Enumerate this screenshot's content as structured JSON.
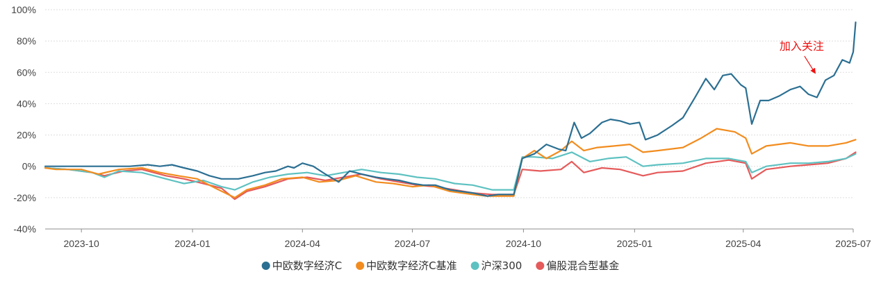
{
  "chart_data": {
    "type": "line",
    "title": "",
    "xlabel": "",
    "ylabel": "",
    "x_range": [
      "2023-09-01",
      "2025-07-01"
    ],
    "ylim": [
      -40,
      100
    ],
    "y_ticks": [
      -40,
      -20,
      0,
      20,
      40,
      60,
      80,
      100
    ],
    "y_tick_labels": [
      "-40%",
      "-20%",
      "0%",
      "20%",
      "40%",
      "60%",
      "80%",
      "100%"
    ],
    "x_ticks": [
      {
        "date": "2023-10-01",
        "label": "2023-10"
      },
      {
        "date": "2024-01-01",
        "label": "2024-01"
      },
      {
        "date": "2024-04-01",
        "label": "2024-04"
      },
      {
        "date": "2024-07-01",
        "label": "2024-07"
      },
      {
        "date": "2024-10-01",
        "label": "2024-10"
      },
      {
        "date": "2025-01-01",
        "label": "2025-01"
      },
      {
        "date": "2025-04-01",
        "label": "2025-04"
      },
      {
        "date": "2025-07-01",
        "label": "2025-07"
      }
    ],
    "grid": true,
    "legend_position": "bottom",
    "annotation": {
      "text": "加入关注",
      "x": "2025-06-01",
      "y": 58,
      "color": "#ee1111"
    },
    "series": [
      {
        "name": "中欧数字经济C",
        "color": "#2b6f92",
        "points": [
          [
            "2023-09-01",
            0
          ],
          [
            "2023-09-20",
            0
          ],
          [
            "2023-10-15",
            0
          ],
          [
            "2023-11-10",
            0
          ],
          [
            "2023-11-25",
            1
          ],
          [
            "2023-12-05",
            0
          ],
          [
            "2023-12-15",
            1
          ],
          [
            "2023-12-25",
            -1
          ],
          [
            "2024-01-05",
            -3
          ],
          [
            "2024-01-15",
            -6
          ],
          [
            "2024-01-25",
            -8
          ],
          [
            "2024-02-08",
            -8
          ],
          [
            "2024-02-20",
            -6
          ],
          [
            "2024-03-01",
            -4
          ],
          [
            "2024-03-10",
            -3
          ],
          [
            "2024-03-20",
            0
          ],
          [
            "2024-03-25",
            -1
          ],
          [
            "2024-04-01",
            2
          ],
          [
            "2024-04-10",
            0
          ],
          [
            "2024-04-20",
            -5
          ],
          [
            "2024-05-01",
            -10
          ],
          [
            "2024-05-10",
            -3
          ],
          [
            "2024-05-20",
            -5
          ],
          [
            "2024-06-01",
            -7
          ],
          [
            "2024-06-10",
            -8
          ],
          [
            "2024-06-20",
            -9
          ],
          [
            "2024-07-01",
            -11
          ],
          [
            "2024-07-10",
            -12
          ],
          [
            "2024-07-20",
            -12
          ],
          [
            "2024-08-01",
            -15
          ],
          [
            "2024-08-10",
            -16
          ],
          [
            "2024-08-20",
            -17
          ],
          [
            "2024-09-01",
            -19
          ],
          [
            "2024-09-10",
            -18
          ],
          [
            "2024-09-23",
            -18
          ],
          [
            "2024-09-30",
            5
          ],
          [
            "2024-10-10",
            8
          ],
          [
            "2024-10-20",
            14
          ],
          [
            "2024-10-30",
            11
          ],
          [
            "2024-11-05",
            10
          ],
          [
            "2024-11-12",
            28
          ],
          [
            "2024-11-18",
            18
          ],
          [
            "2024-11-25",
            21
          ],
          [
            "2024-12-05",
            28
          ],
          [
            "2024-12-12",
            30
          ],
          [
            "2024-12-20",
            29
          ],
          [
            "2024-12-28",
            27
          ],
          [
            "2025-01-05",
            28
          ],
          [
            "2025-01-10",
            17
          ],
          [
            "2025-01-20",
            20
          ],
          [
            "2025-02-01",
            26
          ],
          [
            "2025-02-10",
            31
          ],
          [
            "2025-02-20",
            44
          ],
          [
            "2025-03-01",
            56
          ],
          [
            "2025-03-08",
            49
          ],
          [
            "2025-03-15",
            58
          ],
          [
            "2025-03-22",
            59
          ],
          [
            "2025-03-30",
            52
          ],
          [
            "2025-04-03",
            50
          ],
          [
            "2025-04-08",
            27
          ],
          [
            "2025-04-15",
            42
          ],
          [
            "2025-04-22",
            42
          ],
          [
            "2025-05-01",
            45
          ],
          [
            "2025-05-10",
            49
          ],
          [
            "2025-05-18",
            51
          ],
          [
            "2025-05-25",
            46
          ],
          [
            "2025-06-01",
            44
          ],
          [
            "2025-06-08",
            55
          ],
          [
            "2025-06-15",
            58
          ],
          [
            "2025-06-22",
            68
          ],
          [
            "2025-06-28",
            66
          ],
          [
            "2025-07-01",
            73
          ],
          [
            "2025-07-03",
            92
          ]
        ]
      },
      {
        "name": "中欧数字经济C基准",
        "color": "#f28c1e",
        "points": [
          [
            "2023-09-01",
            -1
          ],
          [
            "2023-09-10",
            -2
          ],
          [
            "2023-10-01",
            -2
          ],
          [
            "2023-10-15",
            -5
          ],
          [
            "2023-11-01",
            -2
          ],
          [
            "2023-11-20",
            -1
          ],
          [
            "2023-12-05",
            -4
          ],
          [
            "2023-12-20",
            -6
          ],
          [
            "2024-01-05",
            -8
          ],
          [
            "2024-01-20",
            -14
          ],
          [
            "2024-02-05",
            -20
          ],
          [
            "2024-02-15",
            -15
          ],
          [
            "2024-03-01",
            -12
          ],
          [
            "2024-03-15",
            -8
          ],
          [
            "2024-04-01",
            -7
          ],
          [
            "2024-04-15",
            -10
          ],
          [
            "2024-05-01",
            -9
          ],
          [
            "2024-05-15",
            -6
          ],
          [
            "2024-06-01",
            -10
          ],
          [
            "2024-06-15",
            -11
          ],
          [
            "2024-07-01",
            -13
          ],
          [
            "2024-07-15",
            -12
          ],
          [
            "2024-08-01",
            -16
          ],
          [
            "2024-08-20",
            -18
          ],
          [
            "2024-09-01",
            -19
          ],
          [
            "2024-09-23",
            -19
          ],
          [
            "2024-09-30",
            5
          ],
          [
            "2024-10-10",
            10
          ],
          [
            "2024-10-20",
            5
          ],
          [
            "2024-11-01",
            10
          ],
          [
            "2024-11-10",
            16
          ],
          [
            "2024-11-20",
            10
          ],
          [
            "2024-12-01",
            12
          ],
          [
            "2024-12-15",
            13
          ],
          [
            "2024-12-28",
            14
          ],
          [
            "2025-01-08",
            9
          ],
          [
            "2025-01-20",
            10
          ],
          [
            "2025-02-10",
            12
          ],
          [
            "2025-02-25",
            18
          ],
          [
            "2025-03-10",
            24
          ],
          [
            "2025-03-25",
            22
          ],
          [
            "2025-04-03",
            18
          ],
          [
            "2025-04-08",
            8
          ],
          [
            "2025-04-20",
            13
          ],
          [
            "2025-05-10",
            15
          ],
          [
            "2025-05-25",
            13
          ],
          [
            "2025-06-10",
            13
          ],
          [
            "2025-06-25",
            15
          ],
          [
            "2025-07-03",
            17
          ]
        ]
      },
      {
        "name": "沪深300",
        "color": "#5ec1c1",
        "points": [
          [
            "2023-09-01",
            -1
          ],
          [
            "2023-09-20",
            -2
          ],
          [
            "2023-10-10",
            -4
          ],
          [
            "2023-10-20",
            -7
          ],
          [
            "2023-11-01",
            -3
          ],
          [
            "2023-11-20",
            -4
          ],
          [
            "2023-12-10",
            -8
          ],
          [
            "2023-12-25",
            -11
          ],
          [
            "2024-01-10",
            -9
          ],
          [
            "2024-01-25",
            -13
          ],
          [
            "2024-02-05",
            -15
          ],
          [
            "2024-02-20",
            -10
          ],
          [
            "2024-03-05",
            -7
          ],
          [
            "2024-03-20",
            -5
          ],
          [
            "2024-04-05",
            -4
          ],
          [
            "2024-04-20",
            -6
          ],
          [
            "2024-05-05",
            -4
          ],
          [
            "2024-05-20",
            -2
          ],
          [
            "2024-06-05",
            -4
          ],
          [
            "2024-06-20",
            -5
          ],
          [
            "2024-07-05",
            -7
          ],
          [
            "2024-07-20",
            -8
          ],
          [
            "2024-08-05",
            -11
          ],
          [
            "2024-08-20",
            -12
          ],
          [
            "2024-09-05",
            -15
          ],
          [
            "2024-09-23",
            -15
          ],
          [
            "2024-09-30",
            6
          ],
          [
            "2024-10-10",
            6
          ],
          [
            "2024-10-25",
            5
          ],
          [
            "2024-11-10",
            9
          ],
          [
            "2024-11-25",
            3
          ],
          [
            "2024-12-10",
            5
          ],
          [
            "2024-12-25",
            6
          ],
          [
            "2025-01-08",
            0
          ],
          [
            "2025-01-20",
            1
          ],
          [
            "2025-02-10",
            2
          ],
          [
            "2025-03-01",
            5
          ],
          [
            "2025-03-20",
            5
          ],
          [
            "2025-04-03",
            3
          ],
          [
            "2025-04-08",
            -4
          ],
          [
            "2025-04-20",
            0
          ],
          [
            "2025-05-10",
            2
          ],
          [
            "2025-05-25",
            2
          ],
          [
            "2025-06-10",
            3
          ],
          [
            "2025-06-25",
            5
          ],
          [
            "2025-07-03",
            8
          ]
        ]
      },
      {
        "name": "偏股混合型基金",
        "color": "#e55a5a",
        "points": [
          [
            "2023-09-01",
            -1
          ],
          [
            "2023-09-20",
            -2
          ],
          [
            "2023-10-10",
            -4
          ],
          [
            "2023-10-20",
            -6
          ],
          [
            "2023-11-05",
            -3
          ],
          [
            "2023-11-20",
            -2
          ],
          [
            "2023-12-10",
            -6
          ],
          [
            "2023-12-25",
            -8
          ],
          [
            "2024-01-10",
            -11
          ],
          [
            "2024-01-25",
            -14
          ],
          [
            "2024-02-05",
            -21
          ],
          [
            "2024-02-15",
            -16
          ],
          [
            "2024-03-01",
            -13
          ],
          [
            "2024-03-20",
            -8
          ],
          [
            "2024-04-05",
            -7
          ],
          [
            "2024-04-20",
            -9
          ],
          [
            "2024-05-05",
            -7
          ],
          [
            "2024-05-20",
            -5
          ],
          [
            "2024-06-05",
            -8
          ],
          [
            "2024-06-20",
            -10
          ],
          [
            "2024-07-05",
            -12
          ],
          [
            "2024-07-20",
            -13
          ],
          [
            "2024-08-05",
            -15
          ],
          [
            "2024-08-20",
            -17
          ],
          [
            "2024-09-05",
            -18
          ],
          [
            "2024-09-23",
            -18
          ],
          [
            "2024-09-30",
            -2
          ],
          [
            "2024-10-15",
            -3
          ],
          [
            "2024-11-01",
            -2
          ],
          [
            "2024-11-10",
            3
          ],
          [
            "2024-11-20",
            -4
          ],
          [
            "2024-12-05",
            -1
          ],
          [
            "2024-12-20",
            -2
          ],
          [
            "2025-01-08",
            -6
          ],
          [
            "2025-01-20",
            -4
          ],
          [
            "2025-02-10",
            -3
          ],
          [
            "2025-03-01",
            2
          ],
          [
            "2025-03-20",
            4
          ],
          [
            "2025-04-03",
            2
          ],
          [
            "2025-04-08",
            -8
          ],
          [
            "2025-04-20",
            -2
          ],
          [
            "2025-05-10",
            0
          ],
          [
            "2025-05-25",
            1
          ],
          [
            "2025-06-10",
            2
          ],
          [
            "2025-06-25",
            5
          ],
          [
            "2025-07-03",
            9
          ]
        ]
      }
    ]
  }
}
